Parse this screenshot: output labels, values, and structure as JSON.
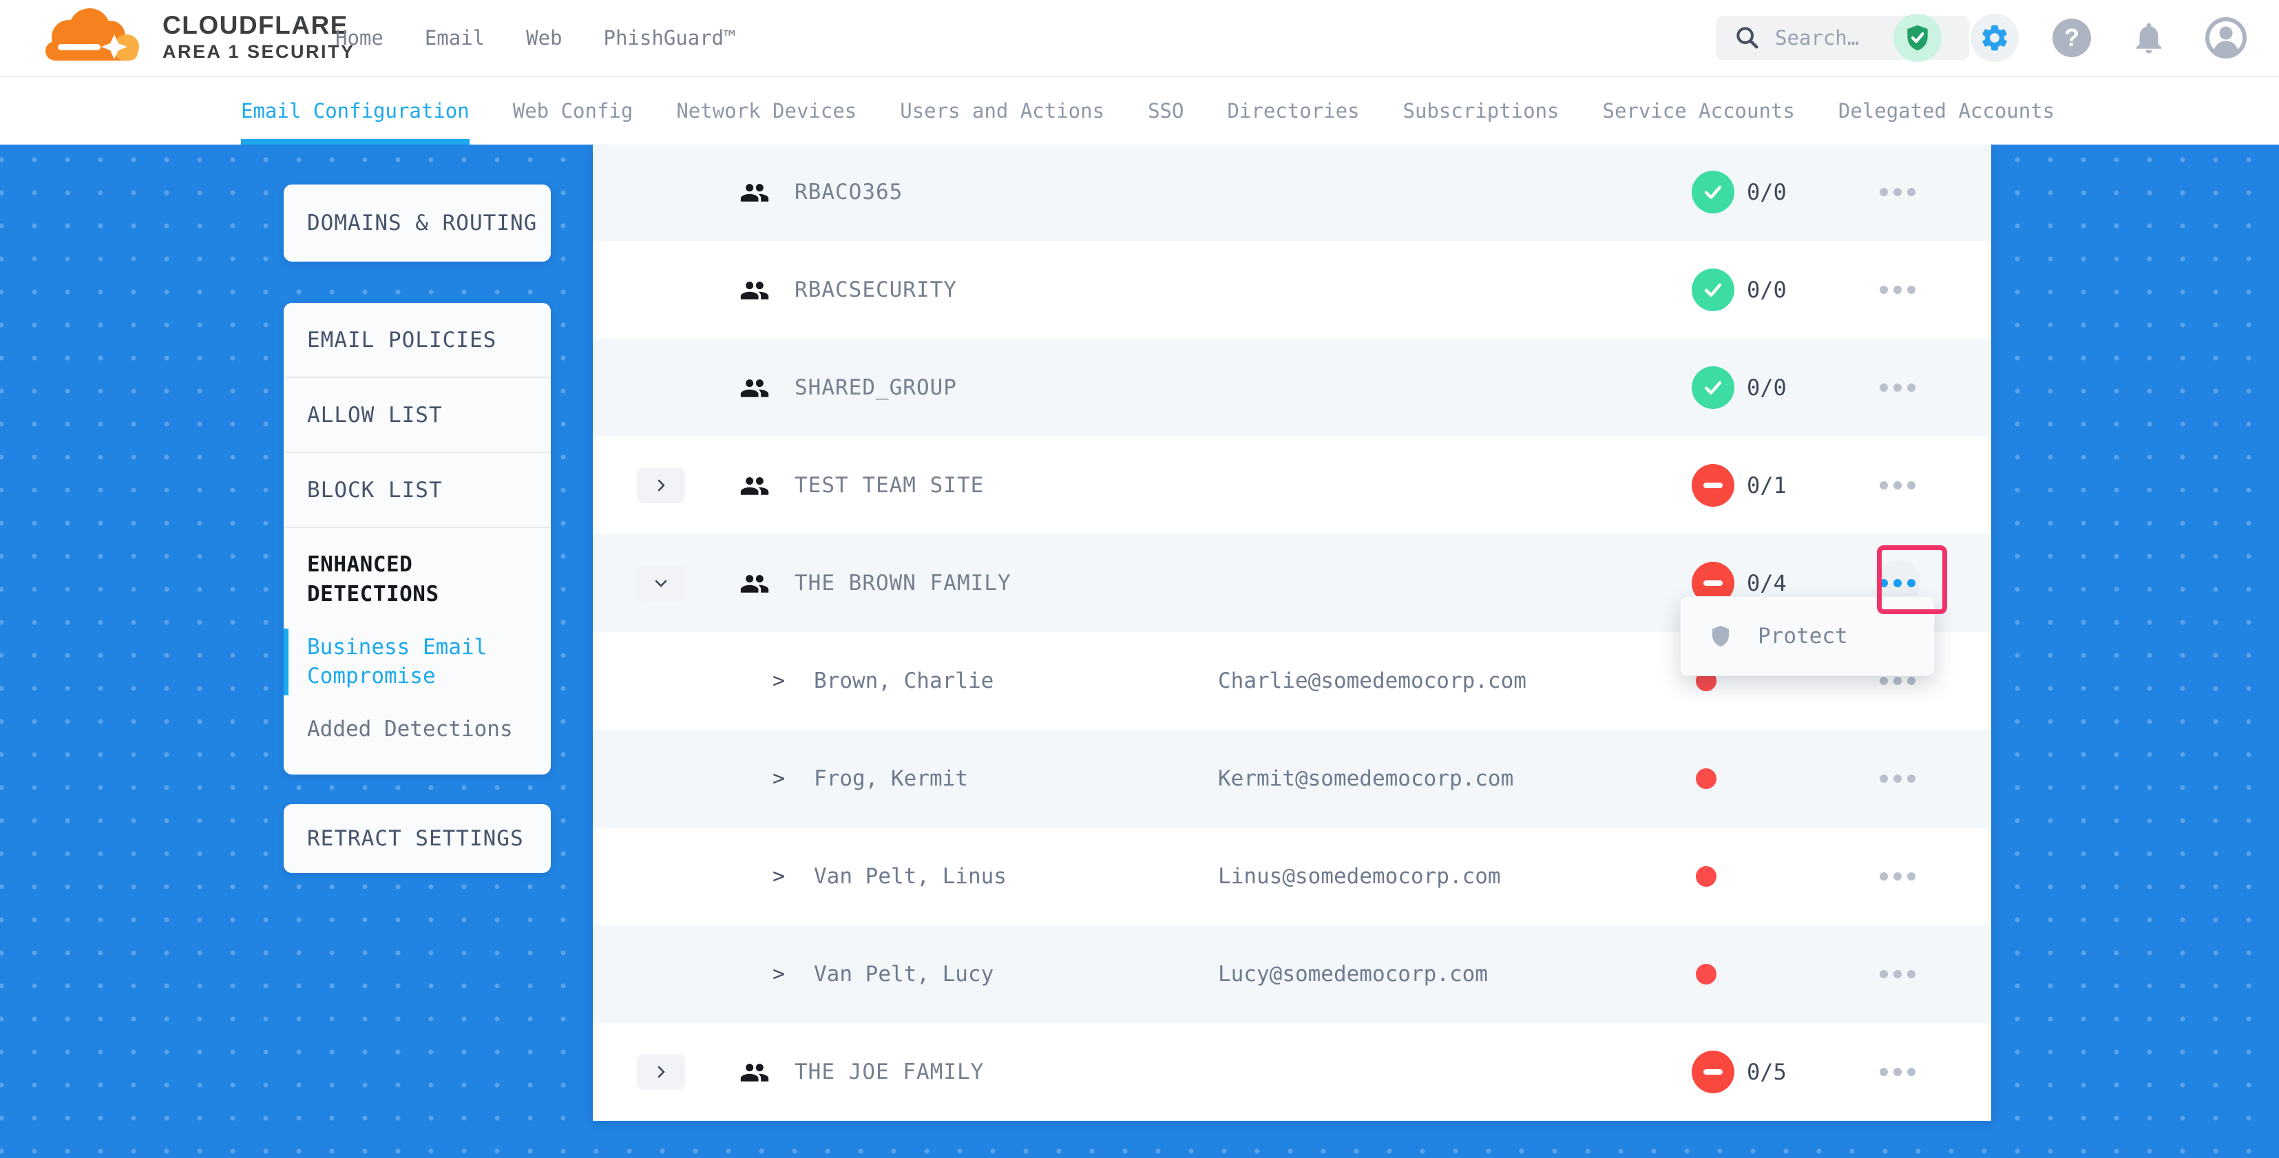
{
  "colors": {
    "accent_blue": "#1CA9EE",
    "page_blue": "#2183E2",
    "status_green": "#3DDCA3",
    "status_red": "#F9483E",
    "annotation_pink": "#F0336B"
  },
  "header": {
    "logo": {
      "brand": "CLOUDFLARE",
      "sub": "AREA 1 SECURITY"
    },
    "nav": [
      "Home",
      "Email",
      "Web",
      "PhishGuard™"
    ],
    "search_placeholder": "Search…",
    "icons": [
      "shield-check-icon",
      "settings-gear-icon",
      "help-icon",
      "notifications-bell-icon",
      "account-icon"
    ]
  },
  "tabs": [
    {
      "label": "Email Configuration",
      "active": true
    },
    {
      "label": "Web Config",
      "active": false
    },
    {
      "label": "Network Devices",
      "active": false
    },
    {
      "label": "Users and Actions",
      "active": false
    },
    {
      "label": "SSO",
      "active": false
    },
    {
      "label": "Directories",
      "active": false
    },
    {
      "label": "Subscriptions",
      "active": false
    },
    {
      "label": "Service Accounts",
      "active": false
    },
    {
      "label": "Delegated Accounts",
      "active": false
    }
  ],
  "sidebar": {
    "domains_routing": "DOMAINS & ROUTING",
    "policy_items": [
      "EMAIL POLICIES",
      "ALLOW LIST",
      "BLOCK LIST"
    ],
    "enhanced": {
      "heading": "ENHANCED DETECTIONS",
      "items": [
        {
          "label": "Business Email Compromise",
          "active": true
        },
        {
          "label": "Added Detections",
          "active": false
        }
      ]
    },
    "retract": "RETRACT SETTINGS"
  },
  "table": {
    "rows": [
      {
        "type": "group",
        "name": "RBACO365",
        "status": "pass",
        "count": "0/0",
        "expander": null,
        "menu": "normal"
      },
      {
        "type": "group",
        "name": "RBACSECURITY",
        "status": "pass",
        "count": "0/0",
        "expander": null,
        "menu": "normal"
      },
      {
        "type": "group",
        "name": "SHARED_GROUP",
        "status": "pass",
        "count": "0/0",
        "expander": null,
        "menu": "normal"
      },
      {
        "type": "group",
        "name": "TEST TEAM SITE",
        "status": "fail",
        "count": "0/1",
        "expander": "right",
        "menu": "normal"
      },
      {
        "type": "group",
        "name": "THE BROWN FAMILY",
        "status": "fail",
        "count": "0/4",
        "expander": "down",
        "menu": "active"
      },
      {
        "type": "member",
        "name": "Brown, Charlie",
        "email": "Charlie@somedemocorp.com",
        "menu": "normal"
      },
      {
        "type": "member",
        "name": "Frog, Kermit",
        "email": "Kermit@somedemocorp.com",
        "menu": "normal"
      },
      {
        "type": "member",
        "name": "Van Pelt, Linus",
        "email": "Linus@somedemocorp.com",
        "menu": "normal"
      },
      {
        "type": "member",
        "name": "Van Pelt, Lucy",
        "email": "Lucy@somedemocorp.com",
        "menu": "normal"
      },
      {
        "type": "group",
        "name": "THE JOE FAMILY",
        "status": "fail",
        "count": "0/5",
        "expander": "right",
        "menu": "normal"
      }
    ]
  },
  "popup": {
    "label": "Protect",
    "icon": "shield-icon"
  }
}
